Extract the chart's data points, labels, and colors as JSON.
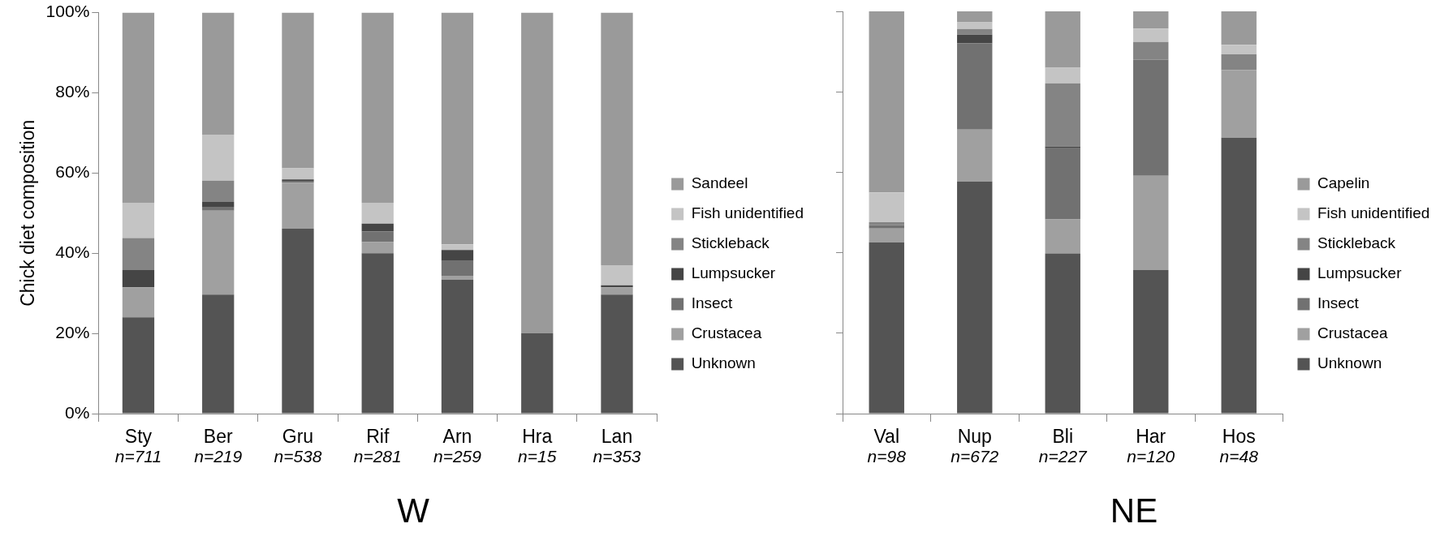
{
  "chart_data": [
    {
      "type": "bar",
      "title": "W",
      "ylabel": "Chick diet composition",
      "stacked": true,
      "legend": "right",
      "categories": [
        "Sty",
        "Ber",
        "Gru",
        "Rif",
        "Arn",
        "Hra",
        "Lan"
      ],
      "series": [
        {
          "name": "Unknown",
          "color": "#545454",
          "values": [
            24.0,
            29.7,
            46.1,
            40.0,
            33.4,
            20.0,
            29.7
          ]
        },
        {
          "name": "Crustacea",
          "color": "#a0a0a0",
          "values": [
            7.5,
            20.9,
            11.5,
            2.8,
            1.0,
            0,
            1.8
          ]
        },
        {
          "name": "Insect",
          "color": "#717171",
          "values": [
            0,
            1.0,
            0.3,
            2.6,
            3.7,
            0,
            0
          ]
        },
        {
          "name": "Lumpsucker",
          "color": "#454545",
          "values": [
            4.3,
            1.2,
            0.5,
            2.0,
            2.7,
            0,
            0.5
          ]
        },
        {
          "name": "Stickleback",
          "color": "#848484",
          "values": [
            8.0,
            5.3,
            0,
            0,
            0,
            0,
            0
          ]
        },
        {
          "name": "Fish unidentified",
          "color": "#c4c4c4",
          "values": [
            8.8,
            11.5,
            2.8,
            5.2,
            1.4,
            0,
            5.0
          ]
        },
        {
          "name": "Sandeel",
          "color": "#9a9a9a",
          "values": [
            47.4,
            30.4,
            38.8,
            47.4,
            57.8,
            80.0,
            63.0
          ]
        }
      ],
      "ylim": [
        0,
        100
      ],
      "yticks": [
        {
          "value": 0,
          "label": "0%"
        },
        {
          "value": 20,
          "label": "20%"
        },
        {
          "value": 40,
          "label": "40%"
        },
        {
          "value": 60,
          "label": "60%"
        },
        {
          "value": 80,
          "label": "80%"
        },
        {
          "value": 100,
          "label": "100%"
        }
      ],
      "annotations": [
        "n=711",
        "n=219",
        "n=538",
        "n=281",
        "n=259",
        "n=15",
        "n=353"
      ]
    },
    {
      "type": "bar",
      "title": "NE",
      "stacked": true,
      "legend": "right",
      "tick_labels": "x",
      "categories": [
        "Val",
        "Nup",
        "Bli",
        "Har",
        "Hos"
      ],
      "series": [
        {
          "name": "Unknown",
          "color": "#545454",
          "values": [
            42.6,
            57.7,
            39.8,
            35.7,
            68.6
          ]
        },
        {
          "name": "Crustacea",
          "color": "#a0a0a0",
          "values": [
            3.4,
            12.9,
            8.5,
            23.4,
            16.8
          ]
        },
        {
          "name": "Insect",
          "color": "#717171",
          "values": [
            0.8,
            21.5,
            17.7,
            28.9,
            0
          ]
        },
        {
          "name": "Lumpsucker",
          "color": "#454545",
          "values": [
            0,
            2.1,
            0.4,
            0,
            0
          ]
        },
        {
          "name": "Stickleback",
          "color": "#848484",
          "values": [
            0.8,
            1.4,
            15.7,
            4.4,
            3.9
          ]
        },
        {
          "name": "Fish unidentified",
          "color": "#c4c4c4",
          "values": [
            7.4,
            1.7,
            3.9,
            3.3,
            2.4
          ]
        },
        {
          "name": "Capelin",
          "color": "#9a9a9a",
          "values": [
            45.0,
            2.7,
            14.0,
            4.3,
            8.3
          ]
        }
      ],
      "ylim": [
        0,
        100
      ],
      "yticks": [
        0,
        20,
        40,
        60,
        80,
        100
      ],
      "annotations": [
        "n=98",
        "n=672",
        "n=227",
        "n=120",
        "n=48"
      ]
    }
  ]
}
